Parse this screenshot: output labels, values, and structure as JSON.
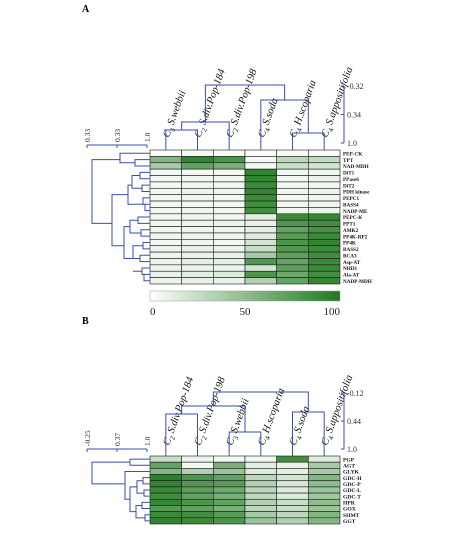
{
  "chart_data": [
    {
      "type": "heatmap",
      "panel_label": "A",
      "columns": [
        {
          "sub": "3",
          "name": "S.webbii"
        },
        {
          "sub": "2",
          "name": "S.div.Pop-184"
        },
        {
          "sub": "2",
          "name": "S.div.Pop-198"
        },
        {
          "sub": "4",
          "name": "S.soda"
        },
        {
          "sub": "4",
          "name": "H.scoparia"
        },
        {
          "sub": "4",
          "name": "S.appositifolia"
        }
      ],
      "rows": [
        "PEP-CK",
        "TPT",
        "NAD-MDH",
        "DiT1",
        "PPase6",
        "DiT2",
        "PDH kinase",
        "PEPC1",
        "BASS4",
        "NADP-ME",
        "PEPC-K",
        "PPT1",
        "AMK2",
        "PP4K-RP2",
        "PP4K",
        "BASS2",
        "BCA3",
        "Asp-AT",
        "NHD1",
        "Ala-AT",
        "NADP-MDH"
      ],
      "values": [
        [
          2,
          5,
          3,
          2,
          3,
          2
        ],
        [
          55,
          92,
          80,
          5,
          30,
          28
        ],
        [
          40,
          70,
          60,
          5,
          25,
          20
        ],
        [
          5,
          6,
          6,
          92,
          5,
          6
        ],
        [
          5,
          6,
          6,
          92,
          6,
          8
        ],
        [
          5,
          6,
          6,
          88,
          5,
          6
        ],
        [
          6,
          8,
          7,
          92,
          7,
          8
        ],
        [
          6,
          7,
          6,
          88,
          6,
          7
        ],
        [
          5,
          6,
          5,
          85,
          6,
          7
        ],
        [
          6,
          7,
          6,
          85,
          7,
          8
        ],
        [
          6,
          7,
          6,
          12,
          88,
          90
        ],
        [
          7,
          8,
          8,
          10,
          78,
          85
        ],
        [
          6,
          7,
          8,
          12,
          70,
          82
        ],
        [
          7,
          8,
          7,
          15,
          75,
          88
        ],
        [
          6,
          7,
          6,
          20,
          80,
          92
        ],
        [
          8,
          10,
          9,
          25,
          78,
          88
        ],
        [
          7,
          9,
          10,
          40,
          72,
          85
        ],
        [
          8,
          12,
          12,
          78,
          70,
          88
        ],
        [
          8,
          9,
          8,
          20,
          72,
          88
        ],
        [
          10,
          12,
          15,
          80,
          65,
          85
        ],
        [
          8,
          10,
          10,
          35,
          70,
          90
        ]
      ],
      "column_dendrogram_ticks": [
        "-0.32",
        "0.34",
        "1.0"
      ],
      "row_dendrogram_ticks": [
        "0.33",
        "0.33",
        "1.0"
      ],
      "colorbar": {
        "ticks": [
          "0",
          "50",
          "100"
        ],
        "range": [
          0,
          100
        ],
        "low_color": "#ffffff",
        "high_color": "#1f7a1f"
      }
    },
    {
      "type": "heatmap",
      "panel_label": "B",
      "columns": [
        {
          "sub": "2",
          "name": "S.div.Pop-184"
        },
        {
          "sub": "2",
          "name": "S.div.Pop-198"
        },
        {
          "sub": "3",
          "name": "S.webbii"
        },
        {
          "sub": "4",
          "name": "H.scoparia"
        },
        {
          "sub": "4",
          "name": "S.soda"
        },
        {
          "sub": "4",
          "name": "S.appositifolia"
        }
      ],
      "rows": [
        "PGP",
        "AGT",
        "GLYK",
        "GDC-H",
        "GDC-P",
        "GDC-L",
        "GDC-T",
        "HPR",
        "GOX",
        "SHMT",
        "GGT"
      ],
      "values": [
        [
          25,
          8,
          6,
          6,
          85,
          15
        ],
        [
          70,
          5,
          60,
          12,
          10,
          40
        ],
        [
          55,
          35,
          45,
          15,
          12,
          40
        ],
        [
          95,
          80,
          70,
          30,
          20,
          55
        ],
        [
          92,
          78,
          75,
          35,
          18,
          50
        ],
        [
          88,
          72,
          65,
          30,
          15,
          45
        ],
        [
          85,
          70,
          60,
          28,
          15,
          42
        ],
        [
          90,
          80,
          70,
          35,
          25,
          50
        ],
        [
          75,
          70,
          60,
          30,
          25,
          45
        ],
        [
          88,
          85,
          75,
          40,
          30,
          55
        ],
        [
          92,
          88,
          80,
          45,
          35,
          55
        ]
      ],
      "column_dendrogram_ticks": [
        "-0.12",
        "0.44",
        "1.0"
      ],
      "row_dendrogram_ticks": [
        "-0.25",
        "0.37",
        "1.0"
      ]
    }
  ]
}
